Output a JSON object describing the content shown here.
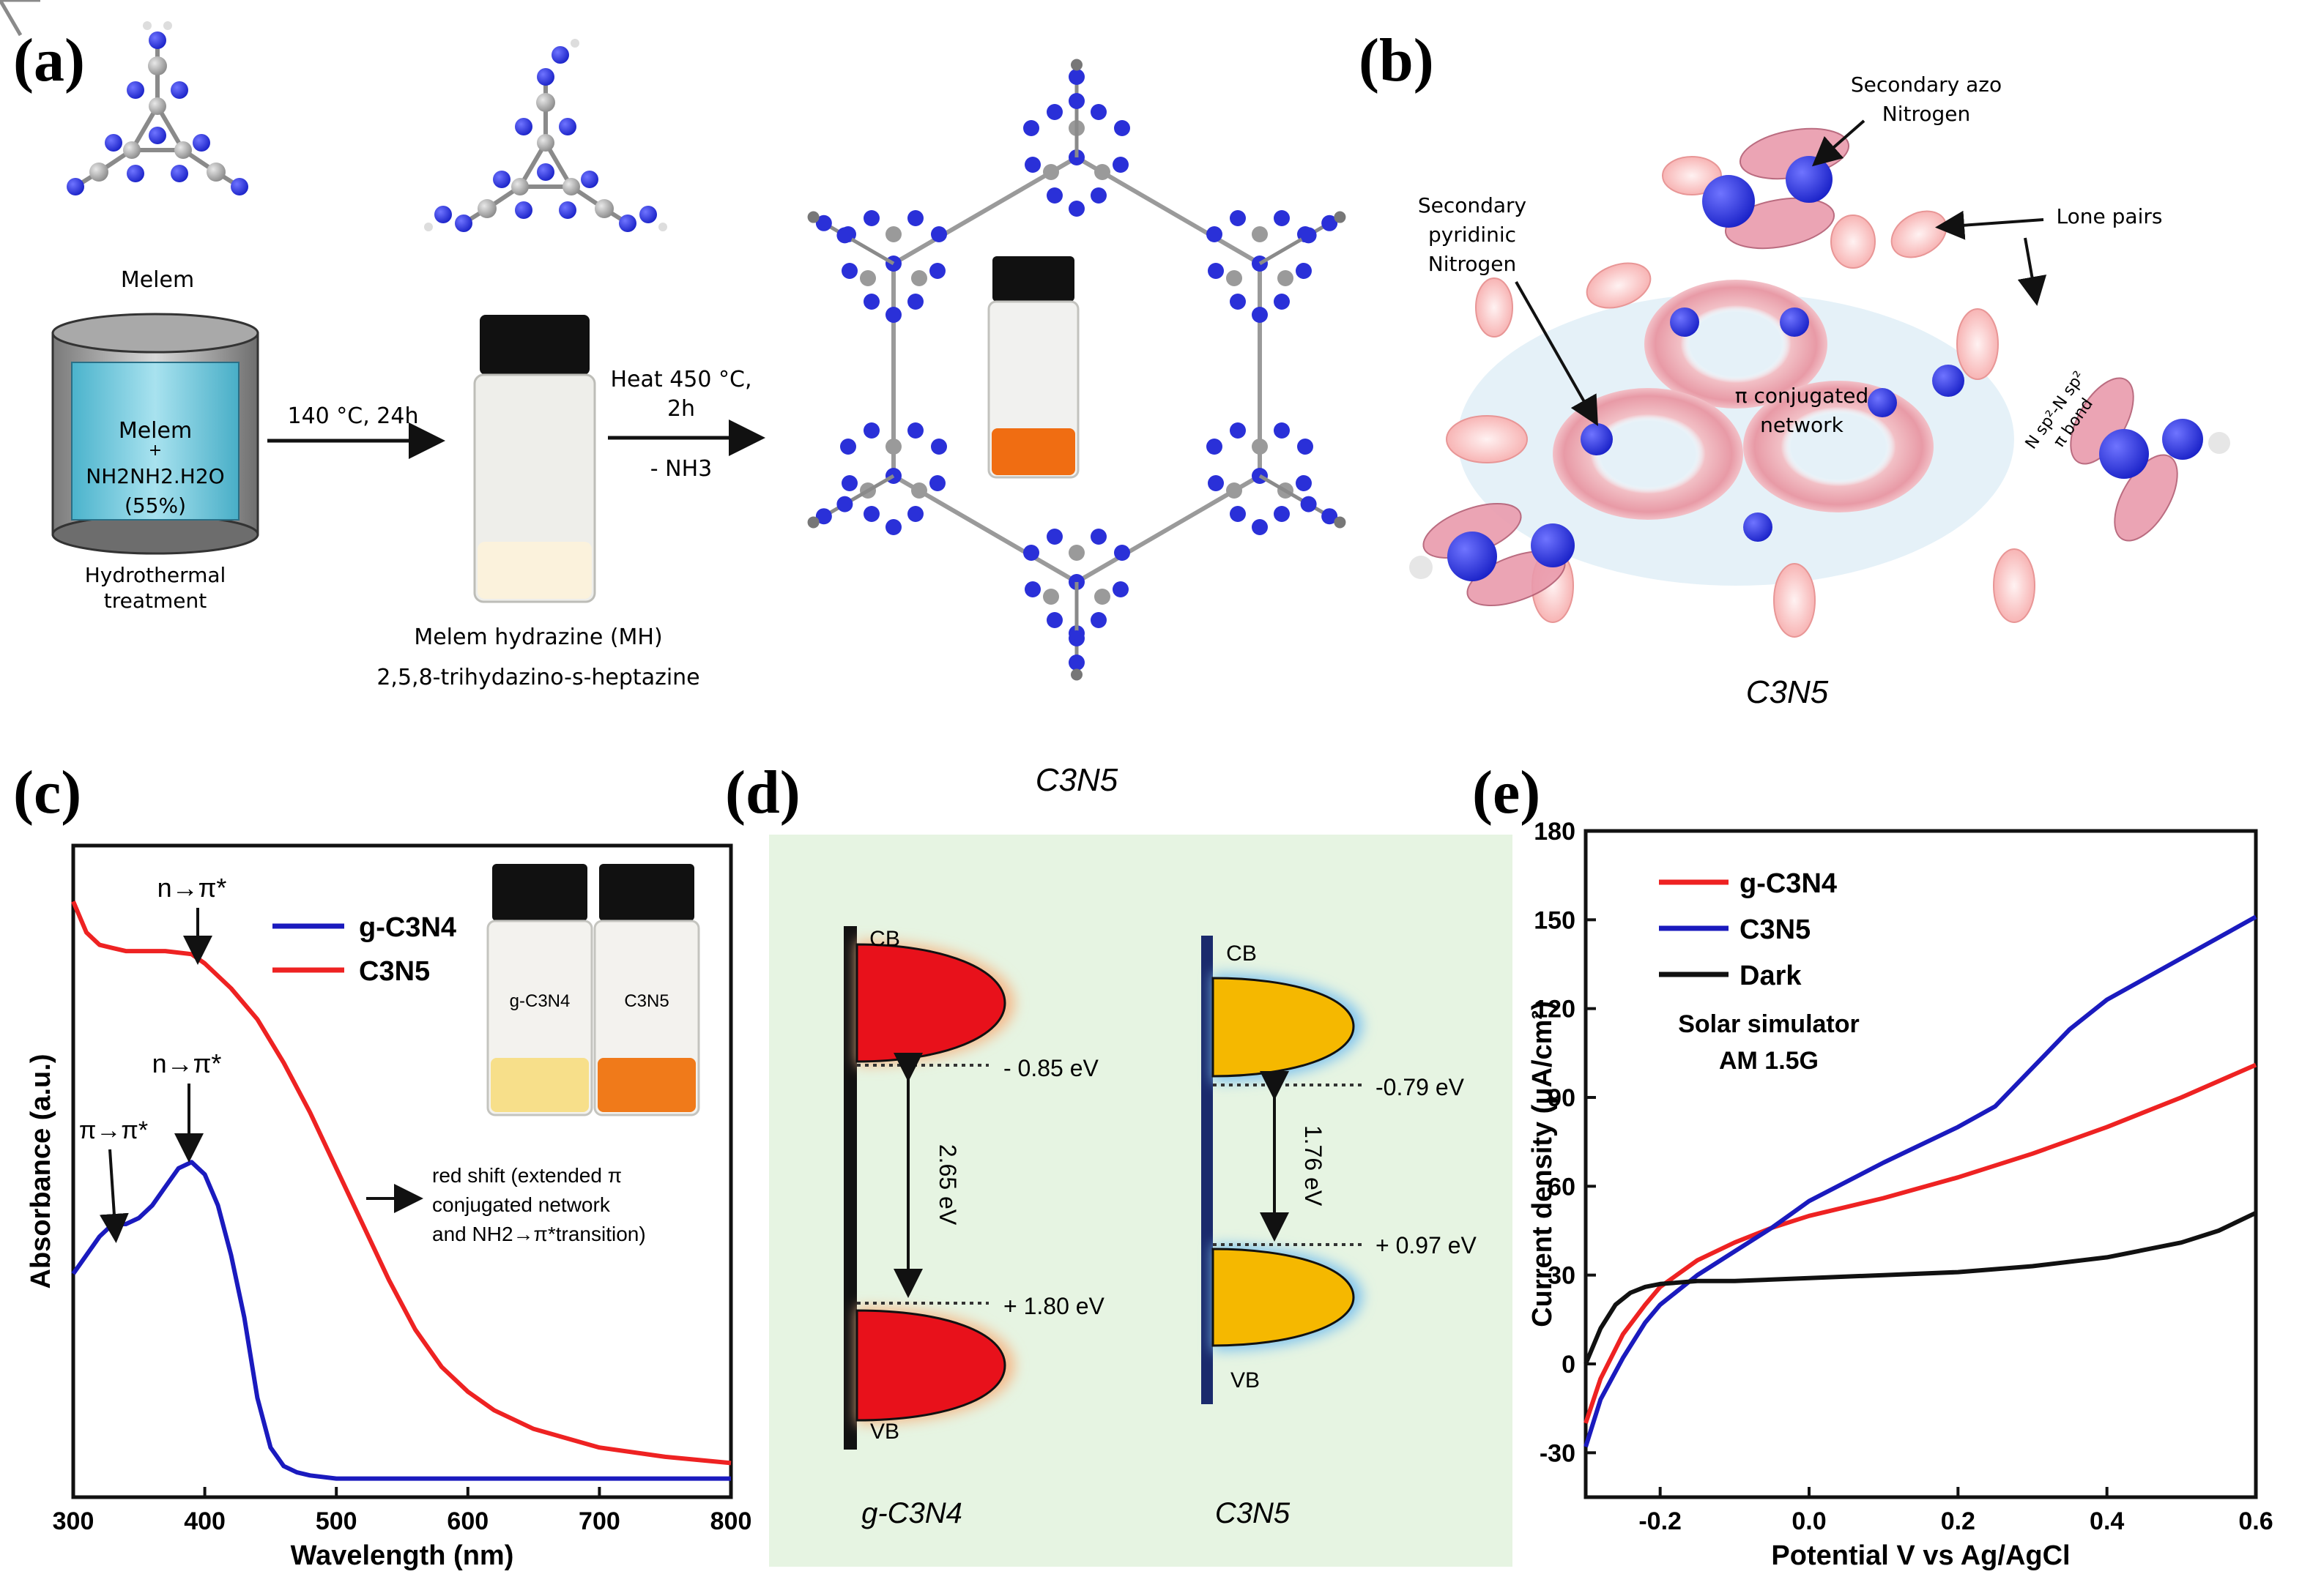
{
  "panel_labels": {
    "a": "(a)",
    "b": "(b)",
    "c": "(c)",
    "d": "(d)",
    "e": "(e)"
  },
  "panel_a": {
    "melem_label": "Melem",
    "reactor_line1": "Melem",
    "reactor_line2": "+",
    "reactor_line3": "NH2NH2.H2O",
    "reactor_line4": "(55%)",
    "reactor_caption1": "Hydrothermal",
    "reactor_caption2": "treatment",
    "step1_condition": "140 °C, 24h",
    "step2_condition1": "Heat 450 °C,",
    "step2_condition2": "2h",
    "step2_condition3": "- NH3",
    "mh_name": "Melem hydrazine (MH)",
    "mh_iupac": "2,5,8-trihydazino-s-heptazine",
    "product_label": "C3N5"
  },
  "panel_b": {
    "azo_label1": "Secondary azo",
    "azo_label2": "Nitrogen",
    "pyridinic_label1": "Secondary",
    "pyridinic_label2": "pyridinic",
    "pyridinic_label3": "Nitrogen",
    "lone_pairs": "Lone pairs",
    "pi_network1": "π conjugated",
    "pi_network2": "network",
    "bond_label1": "N sp²-N sp²",
    "bond_label2": "π bond",
    "caption": "C3N5"
  },
  "panel_d": {
    "left_cb": "CB",
    "left_vb": "VB",
    "left_cb_value": "- 0.85 eV",
    "left_vb_value": "+ 1.80 eV",
    "left_gap": "2.65 eV",
    "left_material": "g-C3N4",
    "right_cb": "CB",
    "right_vb": "VB",
    "right_cb_value": "-0.79 eV",
    "right_vb_value": "+ 0.97 eV",
    "right_gap": "1.76 eV",
    "right_material": "C3N5",
    "colors": {
      "background": "#e6f4e2",
      "left_band": "#e8111b",
      "right_band": "#f5b800",
      "right_glow": "#7fc3ee"
    }
  },
  "chart_data": [
    {
      "id": "c",
      "type": "line",
      "xlabel": "Wavelength (nm)",
      "ylabel": "Absorbance (a.u.)",
      "xlim": [
        300,
        800
      ],
      "ylim": [
        0,
        1.05
      ],
      "x_ticks": [
        "300",
        "400",
        "500",
        "600",
        "700",
        "800"
      ],
      "show_y_ticks": false,
      "legend": [
        "g-C3N4",
        "C3N5"
      ],
      "legend_position": "top-right",
      "colors": {
        "g-C3N4": "#1a1abe",
        "C3N5": "#ee2222"
      },
      "series": [
        {
          "name": "g-C3N4",
          "x": [
            300,
            310,
            320,
            330,
            340,
            350,
            360,
            370,
            380,
            390,
            400,
            410,
            420,
            430,
            440,
            450,
            460,
            470,
            480,
            500,
            550,
            600,
            700,
            800
          ],
          "y": [
            0.36,
            0.39,
            0.42,
            0.44,
            0.44,
            0.45,
            0.47,
            0.5,
            0.53,
            0.54,
            0.52,
            0.47,
            0.39,
            0.29,
            0.16,
            0.08,
            0.05,
            0.04,
            0.035,
            0.03,
            0.03,
            0.03,
            0.03,
            0.03
          ]
        },
        {
          "name": "C3N5",
          "x": [
            300,
            310,
            320,
            330,
            340,
            350,
            370,
            390,
            400,
            420,
            440,
            460,
            480,
            500,
            520,
            540,
            560,
            580,
            600,
            620,
            650,
            700,
            750,
            800
          ],
          "y": [
            0.96,
            0.91,
            0.89,
            0.885,
            0.88,
            0.88,
            0.88,
            0.875,
            0.86,
            0.82,
            0.77,
            0.7,
            0.62,
            0.53,
            0.44,
            0.35,
            0.27,
            0.21,
            0.17,
            0.14,
            0.11,
            0.08,
            0.065,
            0.055
          ]
        }
      ],
      "annotations": {
        "n_pi_upper": "n→π*",
        "n_pi_lower": "n→π*",
        "pi_pi": "π→π*",
        "red_shift1": "red shift (extended π",
        "red_shift2": "conjugated network",
        "red_shift3": "and NH2→π*transition)"
      },
      "inset_vials": [
        "g-C3N4",
        "C3N5"
      ],
      "inset_powder_colors": [
        "#f7df8a",
        "#f07a1a"
      ]
    },
    {
      "id": "e",
      "type": "line",
      "xlabel": "Potential V vs Ag/AgCl",
      "ylabel": "Current density (μA/cm²)",
      "xlim": [
        -0.3,
        0.6
      ],
      "ylim": [
        -45,
        180
      ],
      "x_ticks": [
        "-0.2",
        "0.0",
        "0.2",
        "0.4",
        "0.6"
      ],
      "y_ticks": [
        "-30",
        "0",
        "30",
        "60",
        "90",
        "120",
        "150",
        "180"
      ],
      "legend": [
        "g-C3N4",
        "C3N5",
        "Dark"
      ],
      "legend_position": "top-left",
      "annotation1": "Solar simulator",
      "annotation2": "AM 1.5G",
      "colors": {
        "g-C3N4": "#ee2222",
        "C3N5": "#1a1abe",
        "Dark": "#111111"
      },
      "series": [
        {
          "name": "g-C3N4",
          "x": [
            -0.3,
            -0.28,
            -0.25,
            -0.22,
            -0.2,
            -0.15,
            -0.1,
            -0.05,
            0,
            0.1,
            0.2,
            0.3,
            0.4,
            0.5,
            0.6
          ],
          "y": [
            -20,
            -5,
            10,
            20,
            26,
            35,
            41,
            46,
            50,
            56,
            63,
            71,
            80,
            90,
            101
          ]
        },
        {
          "name": "C3N5",
          "x": [
            -0.3,
            -0.28,
            -0.25,
            -0.22,
            -0.2,
            -0.15,
            -0.1,
            -0.05,
            0,
            0.1,
            0.2,
            0.25,
            0.3,
            0.35,
            0.4,
            0.5,
            0.6
          ],
          "y": [
            -28,
            -12,
            2,
            14,
            20,
            30,
            38,
            46,
            55,
            68,
            80,
            87,
            100,
            113,
            123,
            137,
            151
          ]
        },
        {
          "name": "Dark",
          "x": [
            -0.3,
            -0.28,
            -0.26,
            -0.24,
            -0.22,
            -0.2,
            -0.15,
            -0.1,
            0,
            0.1,
            0.2,
            0.3,
            0.4,
            0.5,
            0.55,
            0.6
          ],
          "y": [
            0,
            12,
            20,
            24,
            26,
            27,
            28,
            28,
            29,
            30,
            31,
            33,
            36,
            41,
            45,
            51
          ]
        }
      ]
    }
  ]
}
